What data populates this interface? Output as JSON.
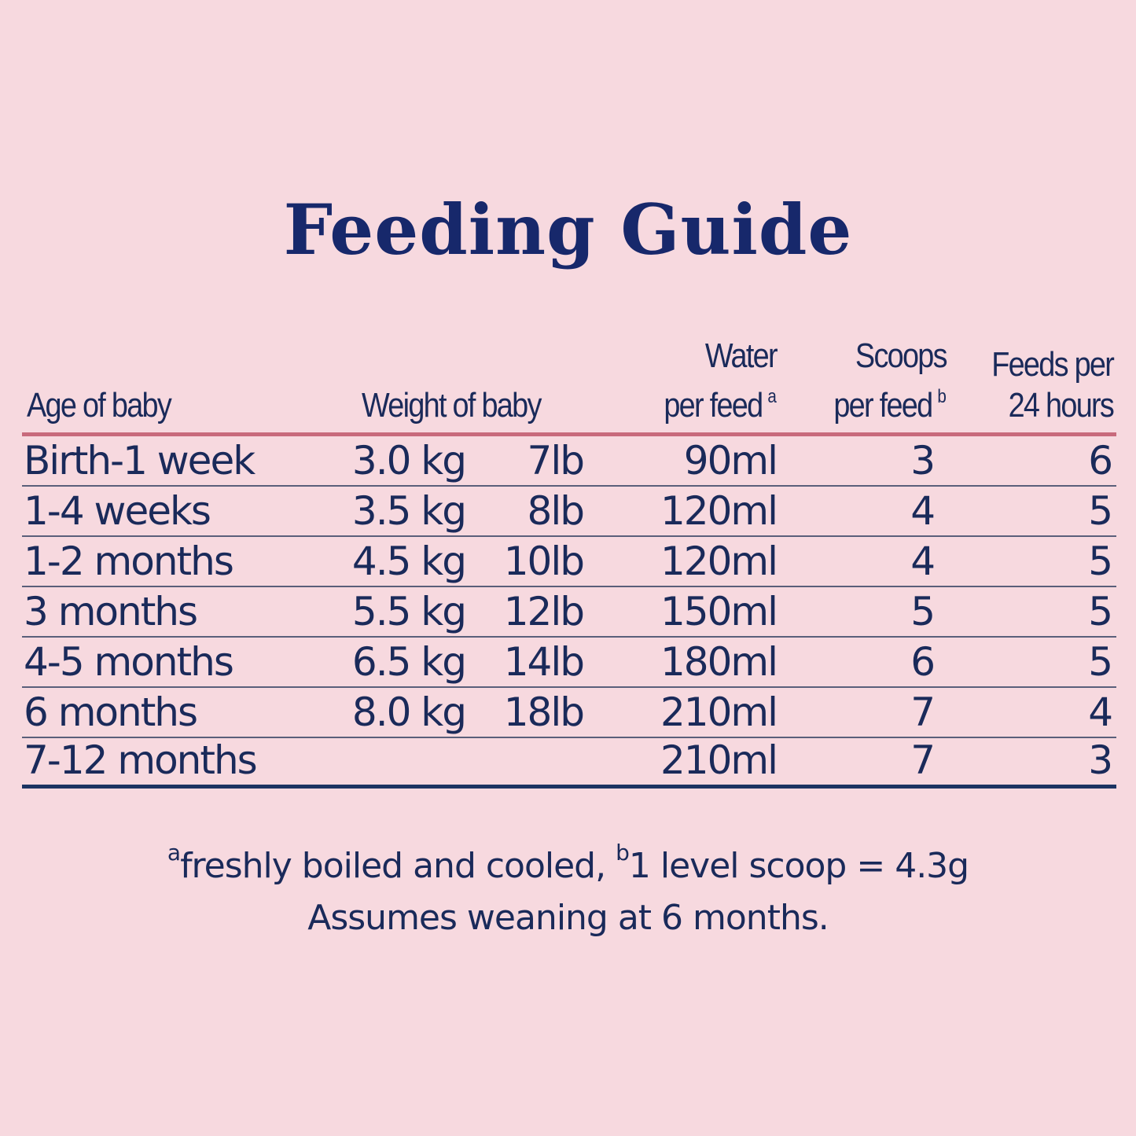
{
  "title": "Feeding Guide",
  "colors": {
    "background": "#f7d9df",
    "text": "#1a2a5a",
    "title": "#17286b",
    "header_rule": "#c86a7c",
    "row_rule": "#5a5f7a",
    "bottom_rule": "#1c3462"
  },
  "table": {
    "headers": {
      "age": "Age of baby",
      "weight": "Weight of baby",
      "water_line1": "Water",
      "water_line2": "per feed",
      "water_sup": "a",
      "scoops_line1": "Scoops",
      "scoops_line2": "per feed",
      "scoops_sup": "b",
      "feeds_line1": "Feeds per",
      "feeds_line2": "24 hours"
    },
    "rows": [
      {
        "age": "Birth-1 week",
        "kg": "3.0 kg",
        "lb": "7lb",
        "water": "90ml",
        "scoops": "3",
        "feeds": "6"
      },
      {
        "age": "1-4 weeks",
        "kg": "3.5 kg",
        "lb": "8lb",
        "water": "120ml",
        "scoops": "4",
        "feeds": "5"
      },
      {
        "age": "1-2 months",
        "kg": "4.5 kg",
        "lb": "10lb",
        "water": "120ml",
        "scoops": "4",
        "feeds": "5"
      },
      {
        "age": "3 months",
        "kg": "5.5 kg",
        "lb": "12lb",
        "water": "150ml",
        "scoops": "5",
        "feeds": "5"
      },
      {
        "age": "4-5 months",
        "kg": "6.5 kg",
        "lb": "14lb",
        "water": "180ml",
        "scoops": "6",
        "feeds": "5"
      },
      {
        "age": "6 months",
        "kg": "8.0 kg",
        "lb": "18lb",
        "water": "210ml",
        "scoops": "7",
        "feeds": "4"
      },
      {
        "age": "7-12 months",
        "kg": "",
        "lb": "",
        "water": "210ml",
        "scoops": "7",
        "feeds": "3"
      }
    ]
  },
  "footnotes": {
    "a_marker": "a",
    "a_text": "freshly boiled and cooled, ",
    "b_marker": "b",
    "b_text": "1 level scoop = 4.3g",
    "weaning": "Assumes weaning at 6 months."
  }
}
